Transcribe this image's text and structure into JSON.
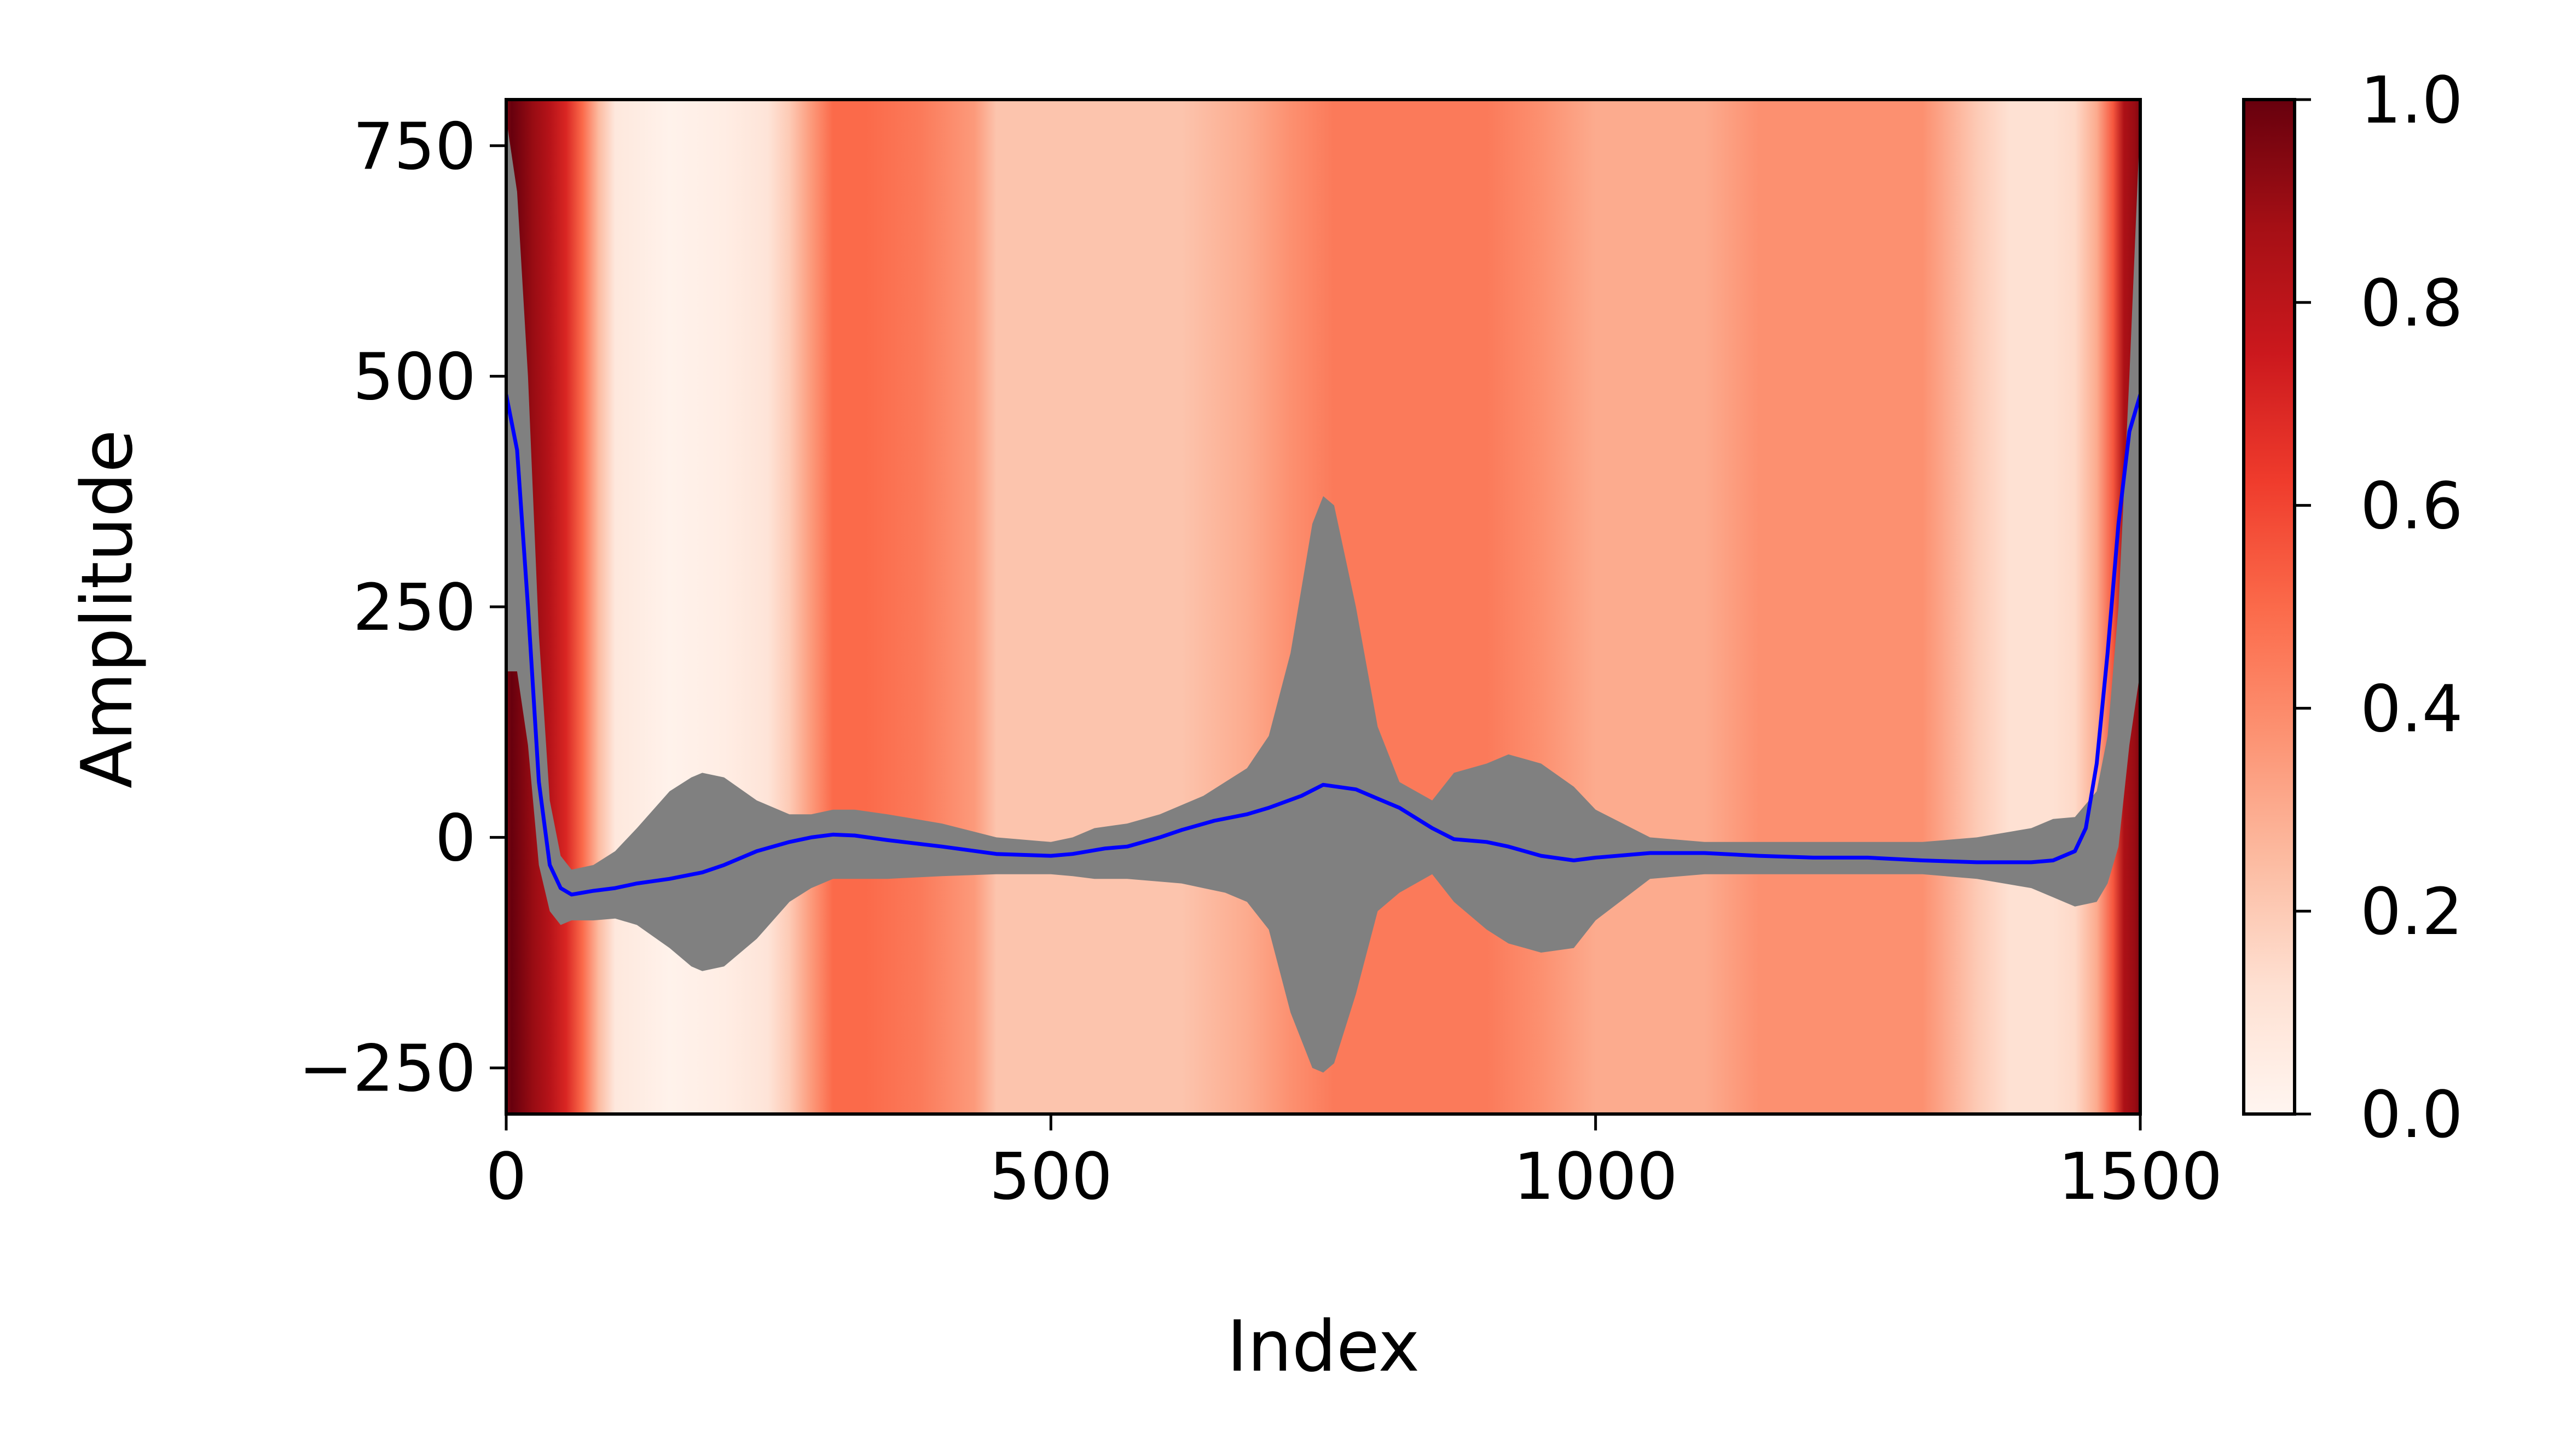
{
  "chart_data": {
    "type": "line",
    "title": "",
    "xlabel": "Index",
    "ylabel": "Amplitude",
    "xlim": [
      0,
      1500
    ],
    "ylim": [
      -300,
      800
    ],
    "grid": false,
    "legend": "none",
    "x_ticks": [
      0,
      500,
      1000,
      1500
    ],
    "x_tick_labels": [
      "0",
      "500",
      "1000",
      "1500"
    ],
    "y_ticks": [
      -250,
      0,
      250,
      500,
      750
    ],
    "y_tick_labels": [
      "−250",
      "0",
      "250",
      "500",
      "750"
    ],
    "mean_line": {
      "color": "#0000ff",
      "x": [
        0,
        10,
        20,
        30,
        40,
        50,
        60,
        70,
        80,
        100,
        120,
        150,
        180,
        200,
        230,
        260,
        280,
        300,
        320,
        350,
        400,
        450,
        500,
        520,
        550,
        570,
        600,
        620,
        650,
        680,
        700,
        730,
        750,
        780,
        800,
        820,
        850,
        870,
        900,
        920,
        950,
        980,
        1000,
        1050,
        1100,
        1150,
        1200,
        1250,
        1300,
        1350,
        1400,
        1420,
        1440,
        1450,
        1460,
        1470,
        1480,
        1490,
        1500
      ],
      "y": [
        480,
        420,
        250,
        60,
        -30,
        -55,
        -62,
        -60,
        -58,
        -55,
        -50,
        -45,
        -38,
        -30,
        -15,
        -5,
        0,
        3,
        2,
        -3,
        -10,
        -18,
        -20,
        -18,
        -12,
        -10,
        0,
        8,
        18,
        25,
        32,
        45,
        57,
        52,
        42,
        32,
        10,
        -2,
        -5,
        -10,
        -20,
        -25,
        -22,
        -17,
        -17,
        -20,
        -22,
        -22,
        -25,
        -27,
        -27,
        -25,
        -15,
        10,
        80,
        200,
        340,
        440,
        480
      ]
    },
    "band": {
      "color": "#808080",
      "x": [
        0,
        10,
        20,
        30,
        40,
        50,
        60,
        80,
        100,
        120,
        150,
        170,
        180,
        200,
        230,
        260,
        280,
        300,
        320,
        350,
        400,
        450,
        500,
        520,
        540,
        570,
        600,
        620,
        640,
        660,
        680,
        700,
        720,
        740,
        750,
        760,
        780,
        800,
        820,
        850,
        870,
        900,
        920,
        950,
        980,
        1000,
        1050,
        1100,
        1150,
        1200,
        1250,
        1300,
        1350,
        1400,
        1420,
        1440,
        1460,
        1470,
        1480,
        1490,
        1500
      ],
      "upper": [
        780,
        700,
        500,
        220,
        40,
        -20,
        -35,
        -30,
        -15,
        10,
        50,
        65,
        70,
        65,
        40,
        25,
        25,
        30,
        30,
        25,
        15,
        0,
        -5,
        0,
        10,
        15,
        25,
        35,
        45,
        60,
        75,
        110,
        200,
        340,
        370,
        360,
        250,
        120,
        60,
        40,
        70,
        80,
        90,
        80,
        55,
        30,
        0,
        -5,
        -5,
        -5,
        -5,
        -5,
        0,
        10,
        20,
        22,
        50,
        110,
        250,
        500,
        780
      ],
      "lower": [
        180,
        180,
        100,
        -30,
        -80,
        -95,
        -90,
        -90,
        -88,
        -95,
        -120,
        -140,
        -145,
        -140,
        -110,
        -70,
        -55,
        -45,
        -45,
        -45,
        -42,
        -40,
        -40,
        -42,
        -45,
        -45,
        -48,
        -50,
        -55,
        -60,
        -70,
        -100,
        -190,
        -250,
        -255,
        -245,
        -170,
        -80,
        -60,
        -40,
        -70,
        -100,
        -115,
        -125,
        -120,
        -90,
        -45,
        -40,
        -40,
        -40,
        -40,
        -40,
        -45,
        -55,
        -65,
        -75,
        -70,
        -50,
        -10,
        100,
        180
      ]
    },
    "background_heatmap": {
      "colormap": "Reds",
      "x": [
        0,
        5,
        15,
        25,
        40,
        55,
        70,
        85,
        100,
        150,
        200,
        240,
        260,
        280,
        300,
        330,
        380,
        430,
        450,
        480,
        520,
        570,
        620,
        680,
        720,
        760,
        800,
        850,
        900,
        950,
        1000,
        1050,
        1100,
        1150,
        1200,
        1250,
        1300,
        1350,
        1380,
        1420,
        1440,
        1460,
        1475,
        1485,
        1495,
        1500
      ],
      "values": [
        0.95,
        1.0,
        0.95,
        0.9,
        0.82,
        0.7,
        0.5,
        0.25,
        0.08,
        0.02,
        0.05,
        0.1,
        0.2,
        0.35,
        0.5,
        0.5,
        0.45,
        0.35,
        0.22,
        0.22,
        0.22,
        0.22,
        0.22,
        0.3,
        0.38,
        0.45,
        0.45,
        0.45,
        0.45,
        0.38,
        0.3,
        0.3,
        0.3,
        0.38,
        0.38,
        0.38,
        0.38,
        0.2,
        0.12,
        0.12,
        0.15,
        0.3,
        0.55,
        0.85,
        0.9,
        0.95
      ]
    },
    "colorbar": {
      "range": [
        0,
        1
      ],
      "ticks": [
        0,
        0.2,
        0.4,
        0.6,
        0.8,
        1.0
      ],
      "tick_labels": [
        "0.0",
        "0.2",
        "0.4",
        "0.6",
        "0.8",
        "1.0"
      ]
    }
  }
}
